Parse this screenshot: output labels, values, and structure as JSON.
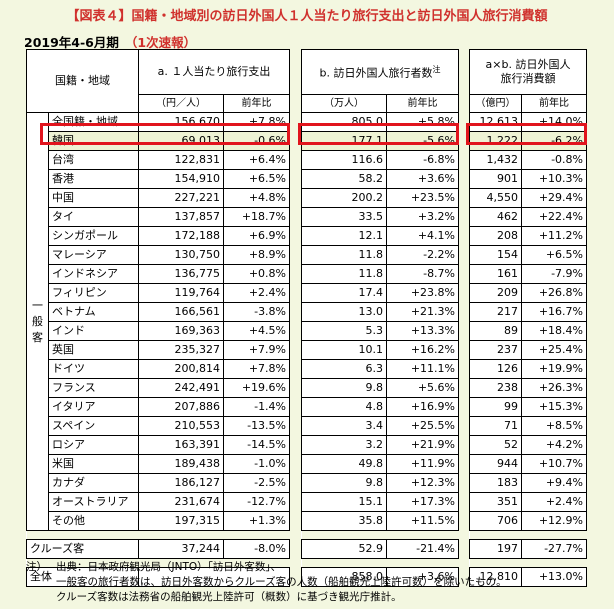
{
  "title": "【図表４】国籍・地域別の訪日外国人１人当たり旅行支出と訪日外国人旅行消費額",
  "subtitle": "2019年4-6月期",
  "subtitle_note": "（1次速報）",
  "headers": {
    "country": "国籍・地域",
    "a": "a. １人当たり旅行支出",
    "a_unit": "（円／人）",
    "b": "b. 訪日外国人旅行者数",
    "b_note": "注",
    "b_unit": "（万人）",
    "c_line1": "a×b. 訪日外国人",
    "c_line2": "旅行消費額",
    "c_unit": "（億円）",
    "yoy": "前年比"
  },
  "category_label": [
    "一",
    "般",
    "客"
  ],
  "rows": [
    {
      "name": "全国籍・地域",
      "a": "156,670",
      "a_yoy": "+7.8%",
      "b": "805.0",
      "b_yoy": "+5.8%",
      "c": "12,613",
      "c_yoy": "+14.0%"
    },
    {
      "name": "韓国",
      "a": "69,013",
      "a_yoy": "-0.6%",
      "b": "177.1",
      "b_yoy": "-5.6%",
      "c": "1,222",
      "c_yoy": "-6.2%"
    },
    {
      "name": "台湾",
      "a": "122,831",
      "a_yoy": "+6.4%",
      "b": "116.6",
      "b_yoy": "-6.8%",
      "c": "1,432",
      "c_yoy": "-0.8%"
    },
    {
      "name": "香港",
      "a": "154,910",
      "a_yoy": "+6.5%",
      "b": "58.2",
      "b_yoy": "+3.6%",
      "c": "901",
      "c_yoy": "+10.3%"
    },
    {
      "name": "中国",
      "a": "227,221",
      "a_yoy": "+4.8%",
      "b": "200.2",
      "b_yoy": "+23.5%",
      "c": "4,550",
      "c_yoy": "+29.4%"
    },
    {
      "name": "タイ",
      "a": "137,857",
      "a_yoy": "+18.7%",
      "b": "33.5",
      "b_yoy": "+3.2%",
      "c": "462",
      "c_yoy": "+22.4%"
    },
    {
      "name": "シンガポール",
      "a": "172,188",
      "a_yoy": "+6.9%",
      "b": "12.1",
      "b_yoy": "+4.1%",
      "c": "208",
      "c_yoy": "+11.2%"
    },
    {
      "name": "マレーシア",
      "a": "130,750",
      "a_yoy": "+8.9%",
      "b": "11.8",
      "b_yoy": "-2.2%",
      "c": "154",
      "c_yoy": "+6.5%"
    },
    {
      "name": "インドネシア",
      "a": "136,775",
      "a_yoy": "+0.8%",
      "b": "11.8",
      "b_yoy": "-8.7%",
      "c": "161",
      "c_yoy": "-7.9%"
    },
    {
      "name": "フィリピン",
      "a": "119,764",
      "a_yoy": "+2.4%",
      "b": "17.4",
      "b_yoy": "+23.8%",
      "c": "209",
      "c_yoy": "+26.8%"
    },
    {
      "name": "ベトナム",
      "a": "166,561",
      "a_yoy": "-3.8%",
      "b": "13.0",
      "b_yoy": "+21.3%",
      "c": "217",
      "c_yoy": "+16.7%"
    },
    {
      "name": "インド",
      "a": "169,363",
      "a_yoy": "+4.5%",
      "b": "5.3",
      "b_yoy": "+13.3%",
      "c": "89",
      "c_yoy": "+18.4%"
    },
    {
      "name": "英国",
      "a": "235,327",
      "a_yoy": "+7.9%",
      "b": "10.1",
      "b_yoy": "+16.2%",
      "c": "237",
      "c_yoy": "+25.4%"
    },
    {
      "name": "ドイツ",
      "a": "200,814",
      "a_yoy": "+7.8%",
      "b": "6.3",
      "b_yoy": "+11.1%",
      "c": "126",
      "c_yoy": "+19.9%"
    },
    {
      "name": "フランス",
      "a": "242,491",
      "a_yoy": "+19.6%",
      "b": "9.8",
      "b_yoy": "+5.6%",
      "c": "238",
      "c_yoy": "+26.3%"
    },
    {
      "name": "イタリア",
      "a": "207,886",
      "a_yoy": "-1.4%",
      "b": "4.8",
      "b_yoy": "+16.9%",
      "c": "99",
      "c_yoy": "+15.3%"
    },
    {
      "name": "スペイン",
      "a": "210,553",
      "a_yoy": "-13.5%",
      "b": "3.4",
      "b_yoy": "+25.5%",
      "c": "71",
      "c_yoy": "+8.5%"
    },
    {
      "name": "ロシア",
      "a": "163,391",
      "a_yoy": "-14.5%",
      "b": "3.2",
      "b_yoy": "+21.9%",
      "c": "52",
      "c_yoy": "+4.2%"
    },
    {
      "name": "米国",
      "a": "189,438",
      "a_yoy": "-1.0%",
      "b": "49.8",
      "b_yoy": "+11.9%",
      "c": "944",
      "c_yoy": "+10.7%"
    },
    {
      "name": "カナダ",
      "a": "186,127",
      "a_yoy": "-2.5%",
      "b": "9.8",
      "b_yoy": "+12.3%",
      "c": "183",
      "c_yoy": "+9.4%"
    },
    {
      "name": "オーストラリア",
      "a": "231,674",
      "a_yoy": "-12.7%",
      "b": "15.1",
      "b_yoy": "+17.3%",
      "c": "351",
      "c_yoy": "+2.4%"
    },
    {
      "name": "その他",
      "a": "197,315",
      "a_yoy": "+1.3%",
      "b": "35.8",
      "b_yoy": "+11.5%",
      "c": "706",
      "c_yoy": "+12.9%"
    }
  ],
  "cruise": {
    "name": "クルーズ客",
    "a": "37,244",
    "a_yoy": "-8.0%",
    "b": "52.9",
    "b_yoy": "-21.4%",
    "c": "197",
    "c_yoy": "-27.7%"
  },
  "total": {
    "name": "全体",
    "b": "858.0",
    "b_yoy": "+3.6%",
    "c": "12,810",
    "c_yoy": "+13.0%"
  },
  "notes": {
    "label": "注）",
    "lines": [
      "出典：日本政府観光局（JNTO）「訪日外客数」、",
      "一般客の旅行者数は、訪日外客数からクルーズ客の人数（船舶観光上陸許可数）を除いたもの。",
      "クルーズ客数は法務省の船舶観光上陸許可（概数）に基づき観光庁推計。"
    ]
  },
  "highlight_color": "#e1141d",
  "title_color": "#d0312d"
}
